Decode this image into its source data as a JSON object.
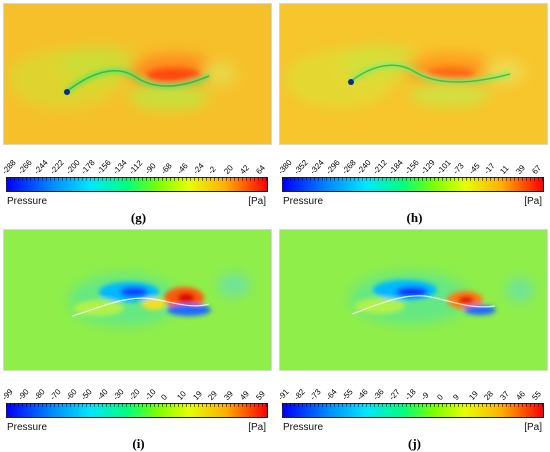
{
  "colorbar": {
    "title": "Pressure",
    "unit": "[Pa]"
  },
  "panels": [
    {
      "id": "g",
      "caption": "(g)",
      "background": "#f6c02a",
      "ticks": [
        "-288",
        "-266",
        "-244",
        "-222",
        "-200",
        "-178",
        "-156",
        "-134",
        "-112",
        "-90",
        "-68",
        "-46",
        "-24",
        "-2",
        "20",
        "42",
        "64"
      ]
    },
    {
      "id": "h",
      "caption": "(h)",
      "background": "#f7c52c",
      "ticks": [
        "-380",
        "-352",
        "-324",
        "-296",
        "-268",
        "-240",
        "-212",
        "-184",
        "-156",
        "-129",
        "-101",
        "-73",
        "-45",
        "-17",
        "11",
        "39",
        "67"
      ]
    },
    {
      "id": "i",
      "caption": "(i)",
      "background": "#8fee4a",
      "ticks": [
        "-99",
        "-90",
        "-80",
        "-70",
        "-60",
        "-50",
        "-40",
        "-30",
        "-20",
        "-10",
        "0",
        "10",
        "19",
        "29",
        "39",
        "49",
        "59"
      ]
    },
    {
      "id": "j",
      "caption": "(j)",
      "background": "#8fee4a",
      "ticks": [
        "-91",
        "-82",
        "-73",
        "-64",
        "-55",
        "-46",
        "-36",
        "-27",
        "-18",
        "-9",
        "0",
        "9",
        "19",
        "28",
        "37",
        "46",
        "55"
      ]
    }
  ]
}
